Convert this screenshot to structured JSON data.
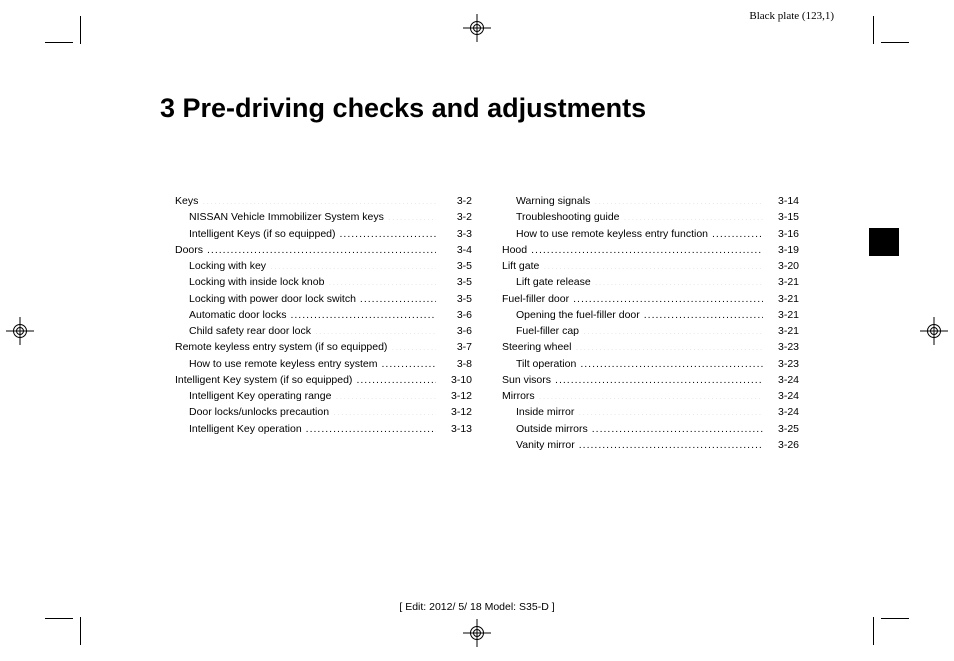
{
  "plate_label": "Black plate (123,1)",
  "title": "3 Pre-driving checks and adjustments",
  "footer": "[ Edit: 2012/ 5/ 18   Model: S35-D ]",
  "left_col": [
    {
      "label": "Keys",
      "page": "3-2",
      "indent": 0
    },
    {
      "label": "NISSAN Vehicle Immobilizer System keys",
      "page": "3-2",
      "indent": 1
    },
    {
      "label": "Intelligent Keys (if so equipped)",
      "page": "3-3",
      "indent": 1
    },
    {
      "label": "Doors",
      "page": "3-4",
      "indent": 0
    },
    {
      "label": "Locking with key",
      "page": "3-5",
      "indent": 1
    },
    {
      "label": "Locking with inside lock knob",
      "page": "3-5",
      "indent": 1
    },
    {
      "label": "Locking with power door lock switch",
      "page": "3-5",
      "indent": 1
    },
    {
      "label": "Automatic door locks",
      "page": "3-6",
      "indent": 1
    },
    {
      "label": "Child safety rear door lock",
      "page": "3-6",
      "indent": 1
    },
    {
      "label": "Remote keyless entry system (if so equipped)",
      "page": "3-7",
      "indent": 0
    },
    {
      "label": "How to use remote keyless entry system",
      "page": "3-8",
      "indent": 1
    },
    {
      "label": "Intelligent Key system (if so equipped)",
      "page": "3-10",
      "indent": 0
    },
    {
      "label": "Intelligent Key operating range",
      "page": "3-12",
      "indent": 1
    },
    {
      "label": "Door locks/unlocks precaution",
      "page": "3-12",
      "indent": 1
    },
    {
      "label": "Intelligent Key operation",
      "page": "3-13",
      "indent": 1
    }
  ],
  "right_col": [
    {
      "label": "Warning signals",
      "page": "3-14",
      "indent": 1
    },
    {
      "label": "Troubleshooting guide",
      "page": "3-15",
      "indent": 1
    },
    {
      "label": "How to use remote keyless entry function",
      "page": "3-16",
      "indent": 1
    },
    {
      "label": "Hood",
      "page": "3-19",
      "indent": 0
    },
    {
      "label": "Lift gate",
      "page": "3-20",
      "indent": 0
    },
    {
      "label": "Lift gate release",
      "page": "3-21",
      "indent": 1
    },
    {
      "label": "Fuel-filler door",
      "page": "3-21",
      "indent": 0
    },
    {
      "label": "Opening the fuel-filler door",
      "page": "3-21",
      "indent": 1
    },
    {
      "label": "Fuel-filler cap",
      "page": "3-21",
      "indent": 1
    },
    {
      "label": "Steering wheel",
      "page": "3-23",
      "indent": 0
    },
    {
      "label": "Tilt operation",
      "page": "3-23",
      "indent": 1
    },
    {
      "label": "Sun visors",
      "page": "3-24",
      "indent": 0
    },
    {
      "label": "Mirrors",
      "page": "3-24",
      "indent": 0
    },
    {
      "label": "Inside mirror",
      "page": "3-24",
      "indent": 1
    },
    {
      "label": "Outside mirrors",
      "page": "3-25",
      "indent": 1
    },
    {
      "label": "Vanity mirror",
      "page": "3-26",
      "indent": 1
    }
  ]
}
